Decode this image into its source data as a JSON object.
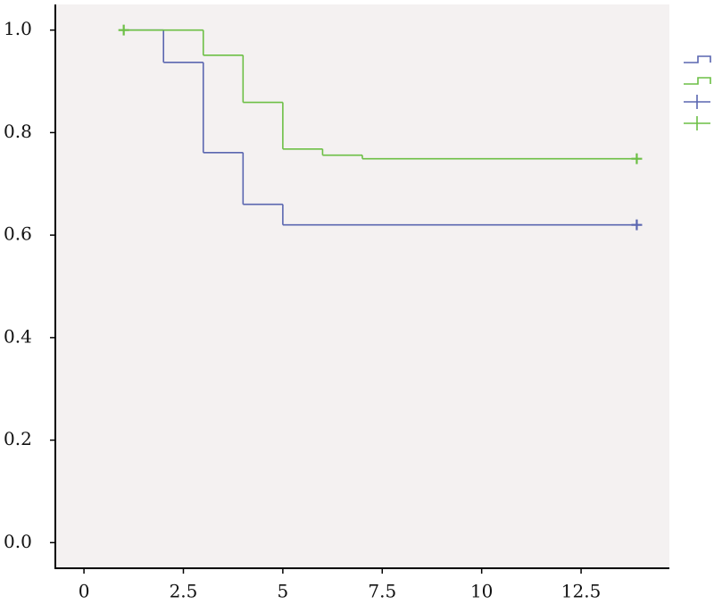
{
  "chart_data": {
    "type": "survival",
    "xlim": [
      -0.72,
      14.72
    ],
    "ylim": [
      -0.05,
      1.05
    ],
    "xticks": [
      0,
      2.5,
      5,
      7.5,
      10,
      12.5
    ],
    "yticks": [
      {
        "value": 0,
        "label": "0.0"
      },
      0.2,
      0.4,
      0.6,
      0.8,
      {
        "value": 1,
        "label": "1.0"
      }
    ],
    "background": "#f4f1f1",
    "series": [
      {
        "color": "#5a66b0",
        "x": [
          1,
          2,
          3,
          4,
          5,
          13.9
        ],
        "values": [
          1,
          0.937,
          0.761,
          0.66,
          0.62,
          0.62
        ],
        "censored": [
          13.9
        ]
      },
      {
        "color": "#6cbf45",
        "x": [
          1,
          3,
          4,
          5,
          6,
          7,
          13.9
        ],
        "values": [
          1,
          0.951,
          0.859,
          0.768,
          0.756,
          0.749,
          0.749
        ],
        "censored": [
          1,
          13.9
        ]
      }
    ]
  }
}
